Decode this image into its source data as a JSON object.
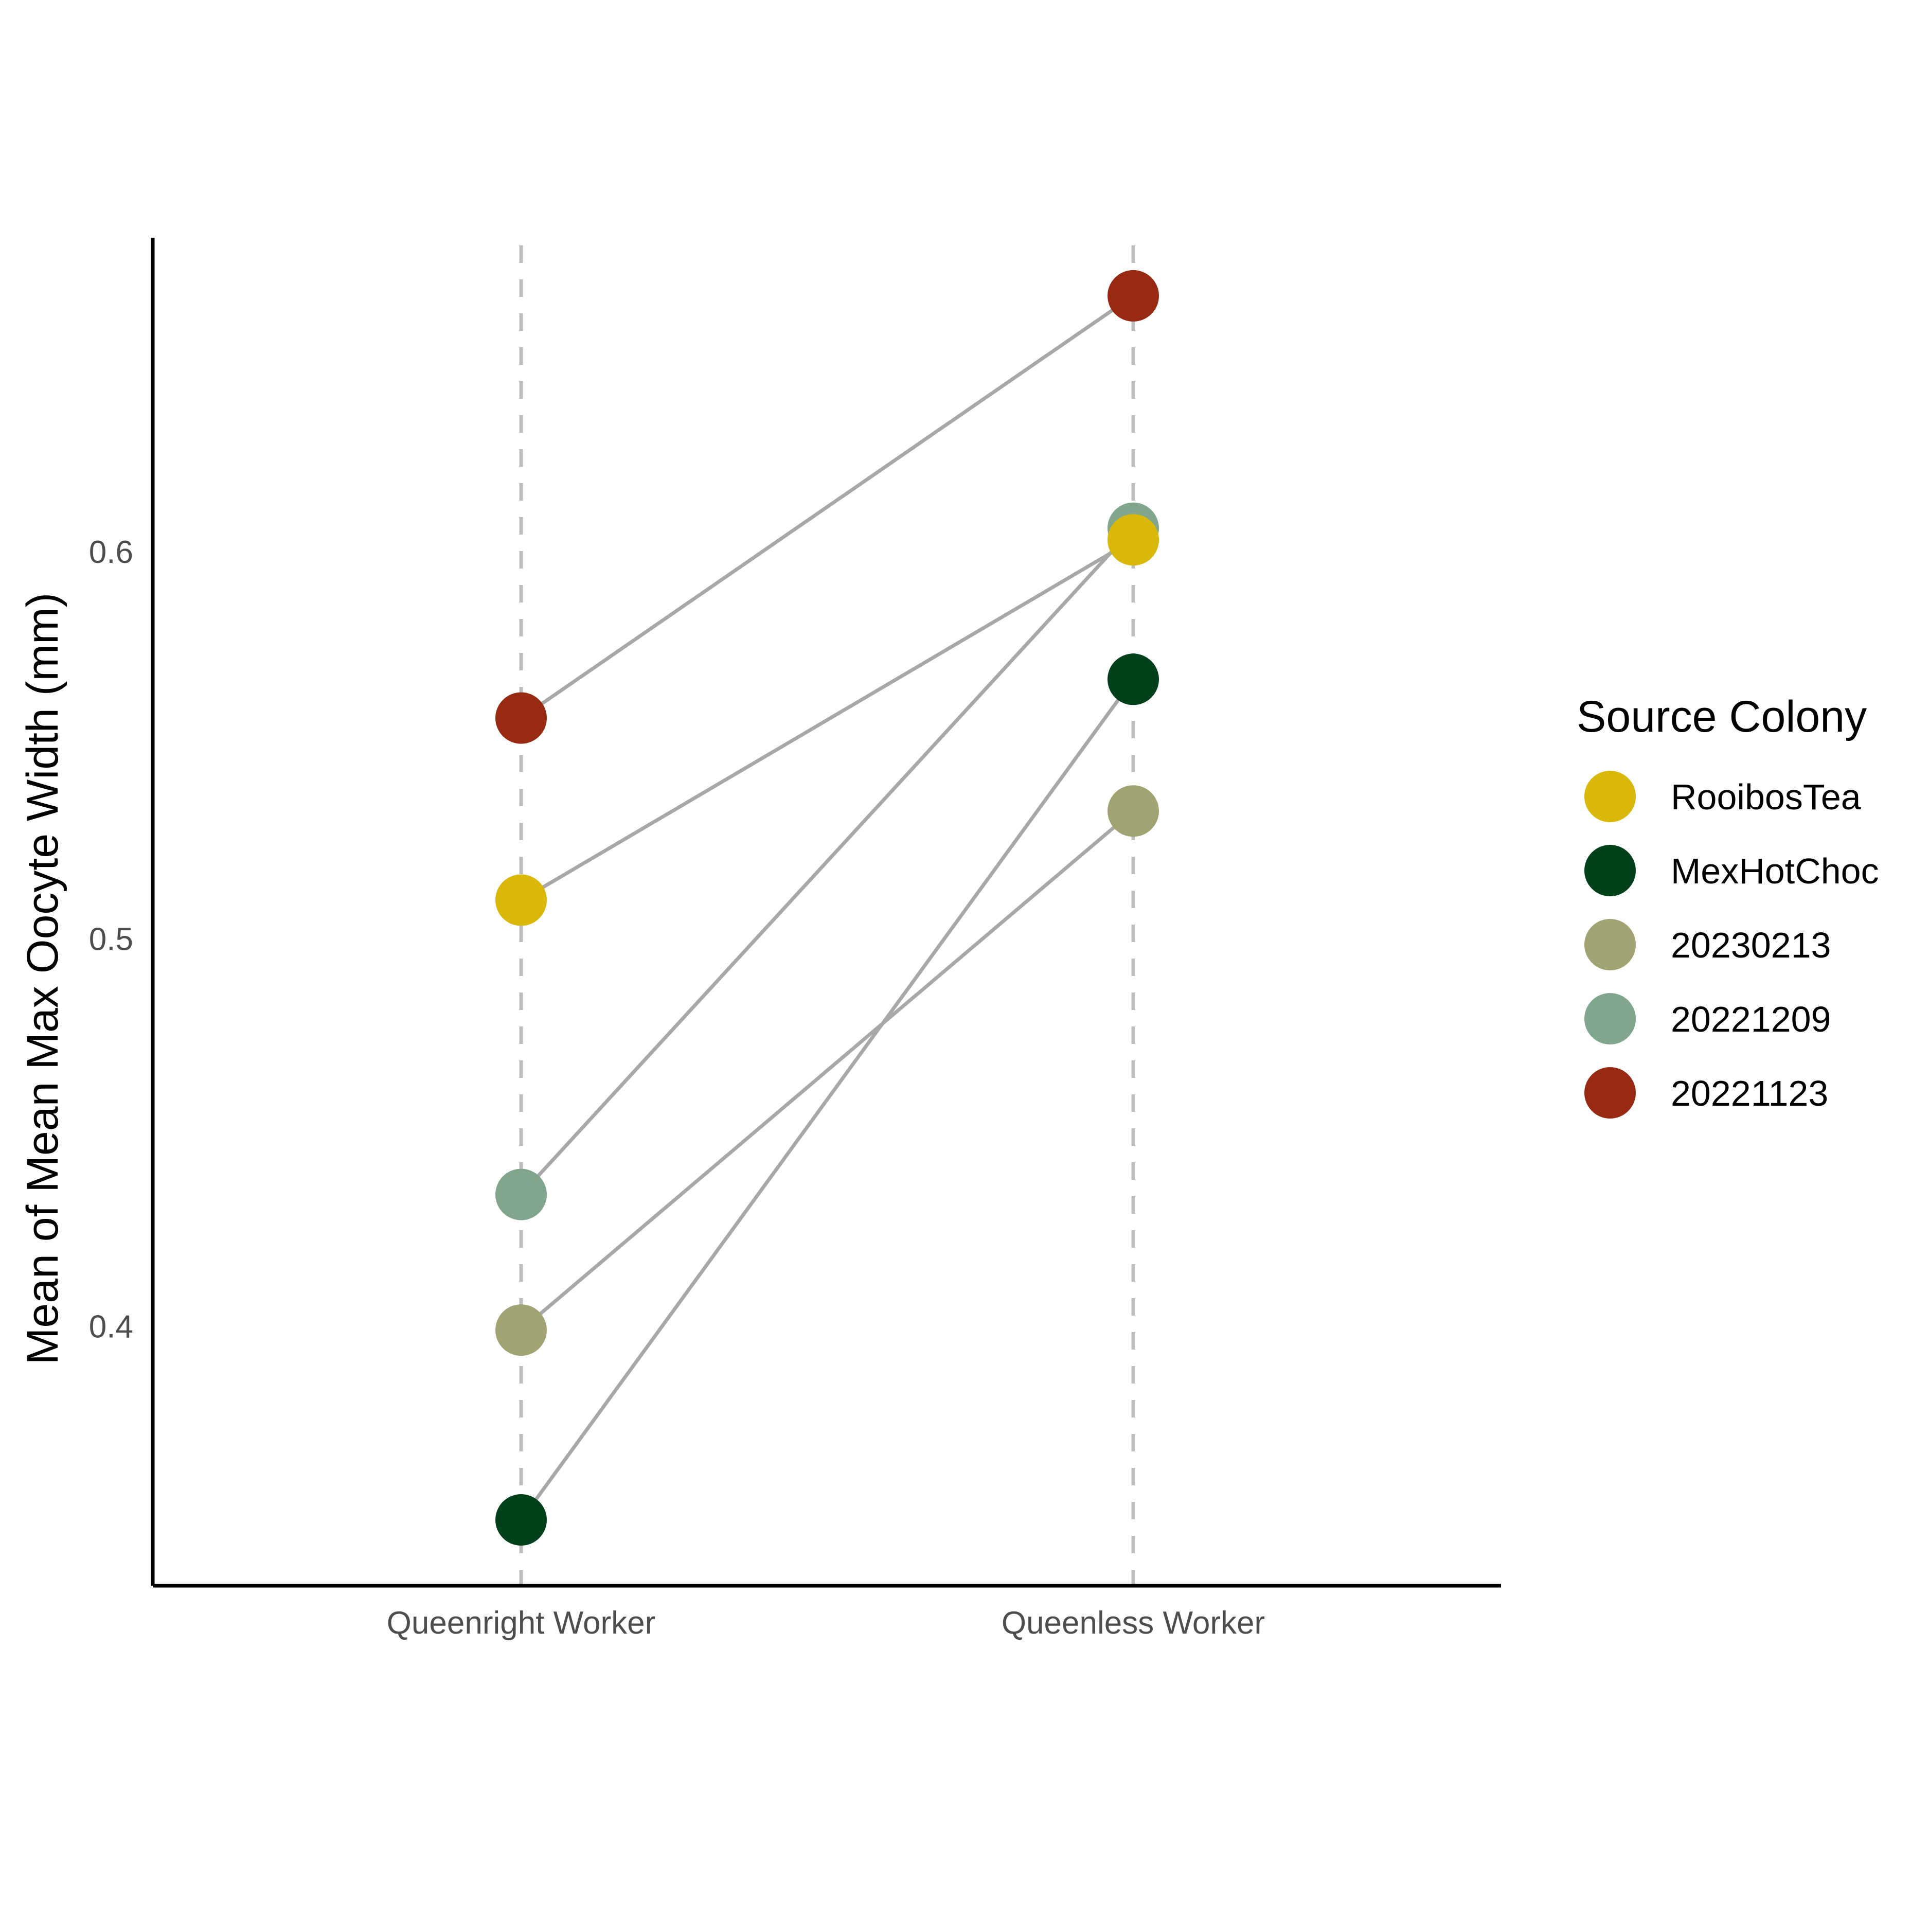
{
  "chart_data": {
    "type": "scatter",
    "title": "",
    "xlabel": "",
    "ylabel": "Mean of Mean Max Oocyte Width (mm)",
    "categories": [
      "Queenright Worker",
      "Queenless Worker"
    ],
    "y_ticks": [
      "0.4",
      "0.5",
      "0.6"
    ],
    "y_tick_values": [
      0.4,
      0.5,
      0.6
    ],
    "ylim": [
      0.333,
      0.681
    ],
    "grid": "dashed vertical lines at categories",
    "legend": {
      "title": "Source Colony",
      "position": "right"
    },
    "series": [
      {
        "name": "RooibosTea",
        "color": "#D9B80A",
        "values": [
          0.51,
          0.603
        ]
      },
      {
        "name": "MexHotChoc",
        "color": "#00401A",
        "values": [
          0.35,
          0.567
        ]
      },
      {
        "name": "20230213",
        "color": "#A1A472",
        "values": [
          0.399,
          0.533
        ]
      },
      {
        "name": "20221209",
        "color": "#82A68C",
        "values": [
          0.434,
          0.606
        ]
      },
      {
        "name": "20221123",
        "color": "#982A13",
        "values": [
          0.557,
          0.666
        ]
      }
    ],
    "line_color": "#A8A8A8",
    "gridline_color": "#BDBDBD",
    "axis_color": "#000000"
  }
}
